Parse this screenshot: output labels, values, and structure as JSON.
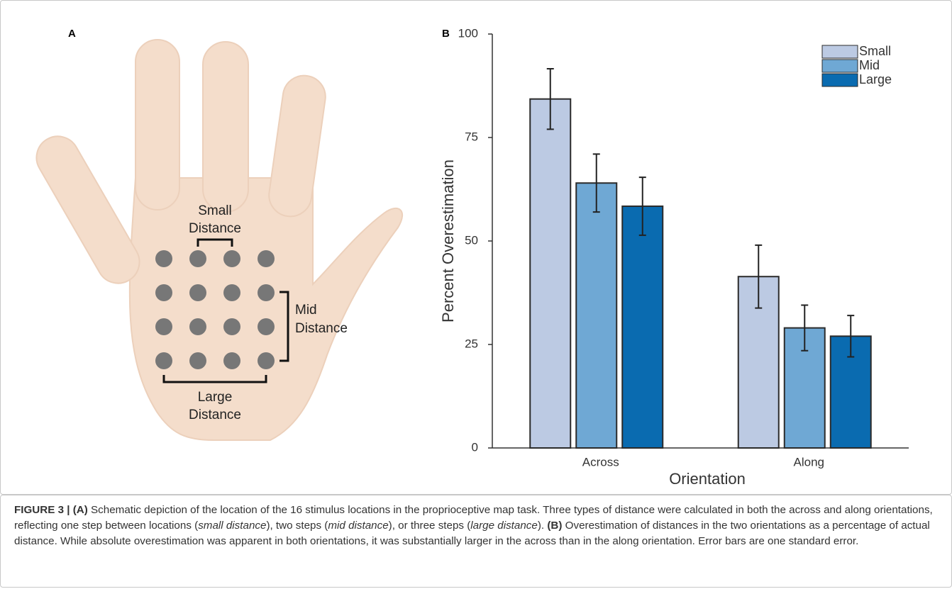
{
  "panel_a": {
    "label": "A",
    "annotations": [
      {
        "lines": [
          "Small",
          "Distance"
        ]
      },
      {
        "lines": [
          "Mid",
          "Distance"
        ]
      },
      {
        "lines": [
          "Large",
          "Distance"
        ]
      }
    ]
  },
  "chart_data": {
    "type": "bar",
    "label": "B",
    "categories": [
      "Across",
      "Along"
    ],
    "series": [
      {
        "name": "Small",
        "color": "#bccae3",
        "values": [
          84.3,
          41.4
        ],
        "errors": [
          7.3,
          7.6
        ]
      },
      {
        "name": "Mid",
        "color": "#6fa8d4",
        "values": [
          64,
          29
        ],
        "errors": [
          7,
          5.5
        ]
      },
      {
        "name": "Large",
        "color": "#0a6bb0",
        "values": [
          58.4,
          27
        ],
        "errors": [
          7,
          5
        ]
      }
    ],
    "xlabel": "Orientation",
    "ylabel": "Percent Overestimation",
    "ylim": [
      0,
      100
    ],
    "yticks": [
      0,
      25,
      50,
      75,
      100
    ],
    "legend": "upper right"
  },
  "caption": [
    {
      "text": "FIGURE 3 | ",
      "style": "bold"
    },
    {
      "text": "(A)",
      "style": "bold"
    },
    {
      "text": " Schematic depiction of the location of the 16 stimulus locations in the proprioceptive map task. Three types of distance were calculated in both the across and along orientations, reflecting one step between locations (",
      "style": "normal"
    },
    {
      "text": "small distance",
      "style": "italic"
    },
    {
      "text": "), two steps (",
      "style": "normal"
    },
    {
      "text": "mid distance",
      "style": "italic"
    },
    {
      "text": "), or three steps (",
      "style": "normal"
    },
    {
      "text": "large distance",
      "style": "italic"
    },
    {
      "text": "). ",
      "style": "normal"
    },
    {
      "text": "(B)",
      "style": "bold"
    },
    {
      "text": " Overestimation of distances in the two orientations as a percentage of actual distance. While absolute overestimation was apparent in both orientations, it was substantially larger in the across than in the along orientation. Error bars are one standard error.",
      "style": "normal"
    }
  ]
}
